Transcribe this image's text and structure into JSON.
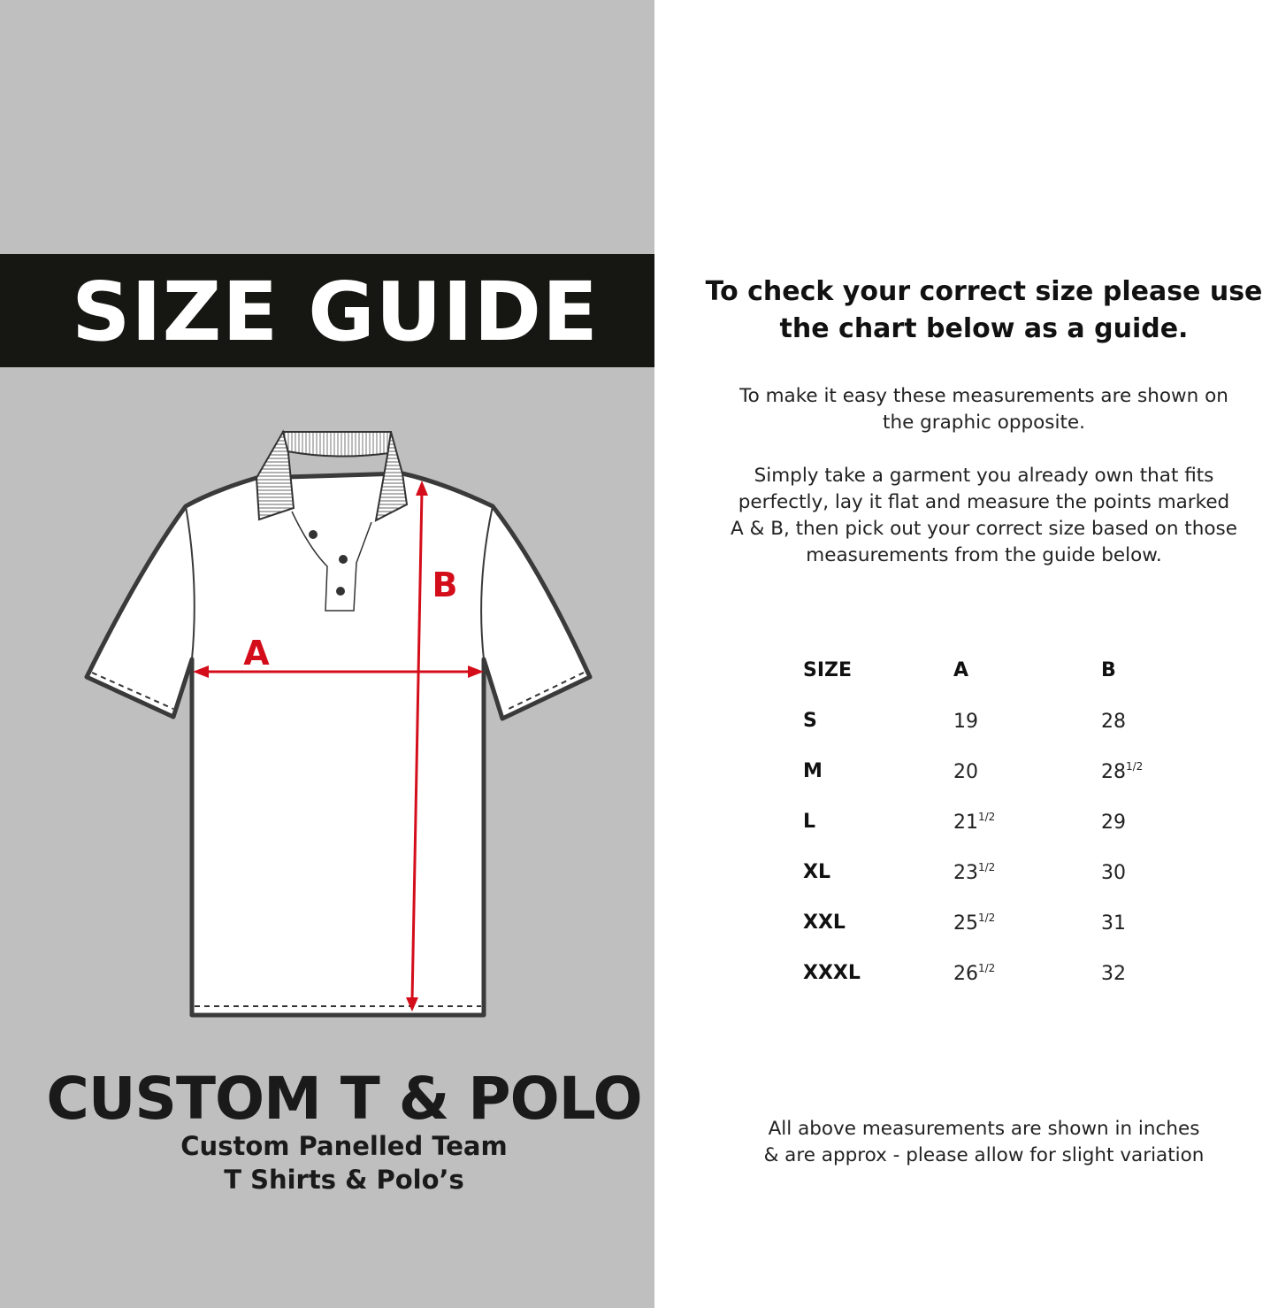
{
  "left_panel": {
    "title": "SIZE GUIDE",
    "diagram_labels": {
      "a": "A",
      "b": "B"
    },
    "brand": "CUSTOM T & POLO",
    "brand_sub_1": "Custom Panelled Team",
    "brand_sub_2": "T Shirts & Polo’s",
    "colors": {
      "panel": "#bfbfbf",
      "bar": "#161612",
      "arrow": "#d40d1a"
    }
  },
  "right_panel": {
    "heading_1": "To check your correct size please use",
    "heading_2": "the chart below as a guide.",
    "para1": [
      "To make it easy these measurements are shown on",
      "the graphic opposite."
    ],
    "para2": [
      "Simply take a garment you already own that fits",
      "perfectly, lay it flat and measure the points marked",
      "A & B, then pick out your correct size based on those",
      "measurements from the guide below."
    ],
    "table": {
      "headers": [
        "SIZE",
        "A",
        "B"
      ],
      "rows": [
        {
          "size": "S",
          "a": "19",
          "a_frac": "",
          "b": "28",
          "b_frac": ""
        },
        {
          "size": "M",
          "a": "20",
          "a_frac": "",
          "b": "28",
          "b_frac": "1/2"
        },
        {
          "size": "L",
          "a": "21",
          "a_frac": "1/2",
          "b": "29",
          "b_frac": ""
        },
        {
          "size": "XL",
          "a": "23",
          "a_frac": "1/2",
          "b": "30",
          "b_frac": ""
        },
        {
          "size": "XXL",
          "a": "25",
          "a_frac": "1/2",
          "b": "31",
          "b_frac": ""
        },
        {
          "size": "XXXL",
          "a": "26",
          "a_frac": "1/2",
          "b": "32",
          "b_frac": ""
        }
      ]
    },
    "footer": [
      "All above measurements are shown in inches",
      "& are approx - please allow for slight variation"
    ]
  }
}
